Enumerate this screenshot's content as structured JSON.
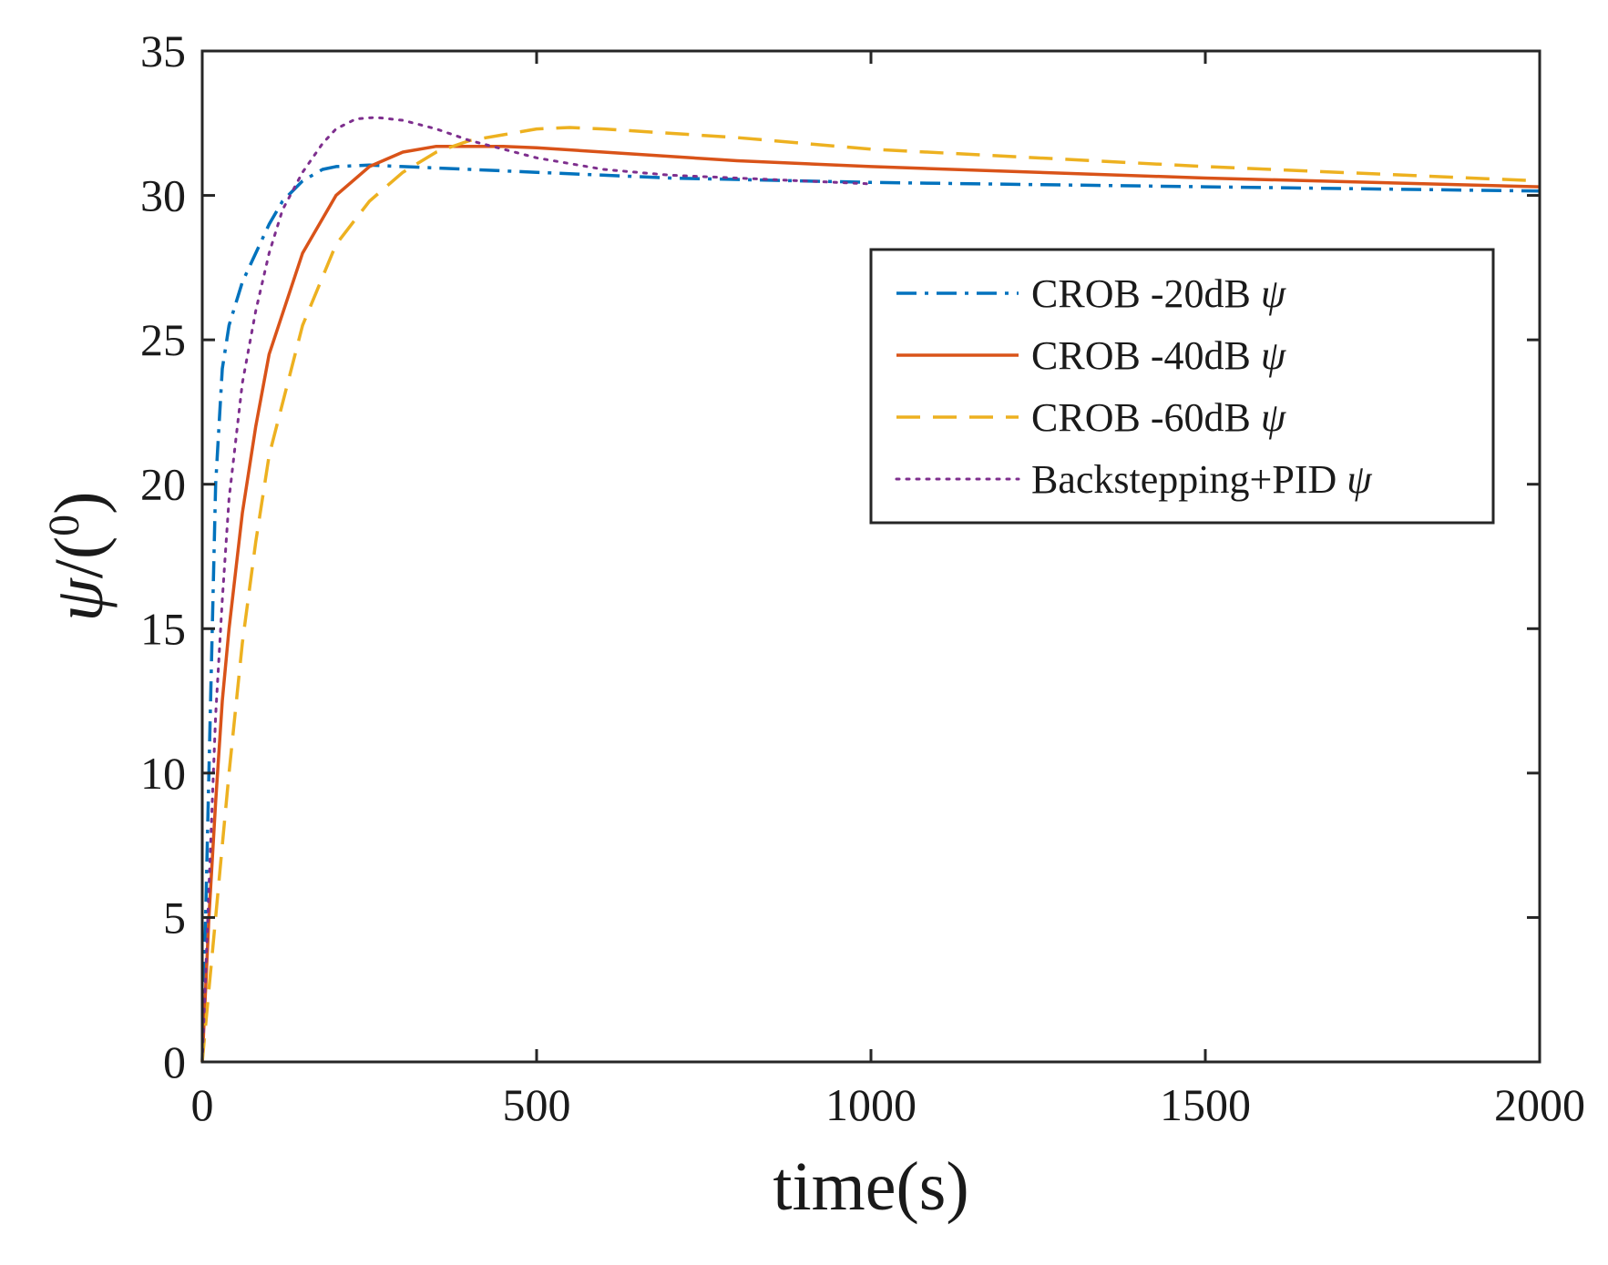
{
  "chart_data": {
    "type": "line",
    "title": "",
    "xlabel": "time(s)",
    "ylabel_symbol": "ψ",
    "ylabel_unit": "/(",
    "ylabel_degree": "0",
    "ylabel_close": ")",
    "xlim": [
      0,
      2000
    ],
    "ylim": [
      0,
      35
    ],
    "xticks": [
      0,
      500,
      1000,
      1500,
      2000
    ],
    "yticks": [
      0,
      5,
      10,
      15,
      20,
      25,
      30,
      35
    ],
    "grid": false,
    "legend_position": "upper-right",
    "series": [
      {
        "name": "CROB -20dB ψ",
        "color": "#0072BD",
        "style": "dashdot",
        "x": [
          0,
          5,
          10,
          15,
          20,
          30,
          40,
          60,
          80,
          100,
          120,
          150,
          180,
          200,
          250,
          300,
          400,
          500,
          700,
          1000,
          1500,
          2000
        ],
        "y": [
          0,
          5,
          10,
          15,
          20,
          24,
          25.5,
          27,
          28,
          29,
          29.8,
          30.5,
          30.9,
          31.0,
          31.05,
          31.0,
          30.9,
          30.8,
          30.6,
          30.45,
          30.3,
          30.15
        ]
      },
      {
        "name": "CROB -40dB ψ",
        "color": "#D95319",
        "style": "solid",
        "x": [
          0,
          10,
          20,
          30,
          40,
          60,
          80,
          100,
          150,
          200,
          250,
          300,
          350,
          400,
          450,
          500,
          600,
          800,
          1000,
          1500,
          2000
        ],
        "y": [
          0,
          5,
          9,
          12.5,
          15,
          19,
          22,
          24.5,
          28,
          30,
          31,
          31.5,
          31.7,
          31.7,
          31.7,
          31.65,
          31.5,
          31.2,
          31.0,
          30.6,
          30.3
        ]
      },
      {
        "name": "CROB -60dB ψ",
        "color": "#EDB120",
        "style": "dashed",
        "x": [
          0,
          10,
          20,
          30,
          40,
          60,
          80,
          100,
          150,
          200,
          250,
          300,
          350,
          400,
          450,
          500,
          550,
          600,
          800,
          1000,
          1500,
          2000
        ],
        "y": [
          0,
          2.5,
          5,
          7.5,
          10,
          14.5,
          18,
          21,
          25.5,
          28.3,
          29.8,
          30.8,
          31.5,
          31.9,
          32.1,
          32.3,
          32.35,
          32.3,
          32.0,
          31.6,
          31.0,
          30.5
        ]
      },
      {
        "name": "Backstepping+PID ψ",
        "color": "#7E2F8E",
        "style": "dotted",
        "x": [
          0,
          5,
          10,
          20,
          30,
          40,
          60,
          80,
          100,
          120,
          150,
          180,
          200,
          230,
          260,
          300,
          350,
          400,
          450,
          500,
          600,
          700,
          800,
          900,
          1000
        ],
        "y": [
          0,
          3,
          6,
          12,
          16,
          19.5,
          23.5,
          26,
          28,
          29.5,
          30.8,
          31.8,
          32.3,
          32.65,
          32.7,
          32.6,
          32.3,
          31.9,
          31.6,
          31.3,
          30.9,
          30.7,
          30.6,
          30.5,
          30.4
        ]
      }
    ]
  }
}
